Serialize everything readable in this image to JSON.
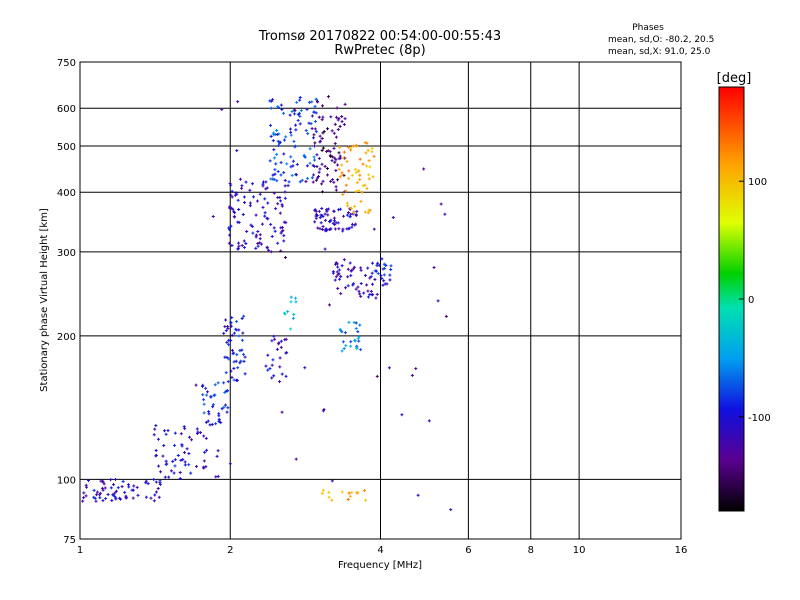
{
  "chart_data": {
    "type": "scatter",
    "title": "Tromsø 20170822 00:54:00-00:55:43",
    "subtitle": "RwPretec (8p)",
    "xlabel": "Frequency [MHz]",
    "ylabel": "Stationary phase Virtual Height [km]",
    "x_scale": "log",
    "y_scale": "log",
    "xlim": [
      1,
      16
    ],
    "ylim": [
      75,
      750
    ],
    "x_ticks": [
      1,
      2,
      4,
      6,
      8,
      10,
      16
    ],
    "x_tick_labels": [
      "1",
      "2",
      "4",
      "6",
      "8",
      "10",
      "16"
    ],
    "y_ticks": [
      75,
      100,
      200,
      300,
      400,
      500,
      600,
      750
    ],
    "y_tick_labels": [
      "75",
      "100",
      "200",
      "300",
      "400",
      "500",
      "600",
      "750"
    ],
    "grid": true,
    "colorbar": {
      "label": "[deg]",
      "range": [
        -180,
        180
      ],
      "ticks": [
        100,
        0,
        -100
      ],
      "tick_labels": [
        "100",
        "0",
        "-100"
      ]
    },
    "stats": {
      "heading": "Phases",
      "line_o": "mean, sd,O: -80.2, 20.5",
      "line_x": "mean, sd,X:  91.0, 25.0"
    },
    "clusters": [
      {
        "f": [
          1.0,
          1.45
        ],
        "h": [
          90,
          100
        ],
        "phase": -110,
        "n": 70
      },
      {
        "f": [
          1.4,
          1.9
        ],
        "h": [
          100,
          130
        ],
        "phase": -105,
        "n": 60
      },
      {
        "f": [
          1.75,
          1.98
        ],
        "h": [
          130,
          160
        ],
        "phase": -85,
        "n": 40
      },
      {
        "f": [
          1.95,
          2.15
        ],
        "h": [
          160,
          220
        ],
        "phase": -95,
        "n": 50
      },
      {
        "f": [
          2.3,
          2.6
        ],
        "h": [
          160,
          200
        ],
        "phase": -110,
        "n": 25
      },
      {
        "f": [
          1.98,
          2.6
        ],
        "h": [
          300,
          430
        ],
        "phase": -110,
        "n": 110
      },
      {
        "f": [
          2.4,
          3.0
        ],
        "h": [
          420,
          640
        ],
        "phase": -80,
        "n": 100
      },
      {
        "f": [
          2.9,
          3.4
        ],
        "h": [
          400,
          620
        ],
        "phase": -140,
        "n": 80
      },
      {
        "f": [
          2.95,
          3.6
        ],
        "h": [
          330,
          370
        ],
        "phase": -110,
        "n": 70
      },
      {
        "f": [
          3.3,
          3.9
        ],
        "h": [
          360,
          520
        ],
        "phase": 110,
        "n": 60
      },
      {
        "f": [
          3.2,
          3.95
        ],
        "h": [
          240,
          290
        ],
        "phase": -115,
        "n": 55
      },
      {
        "f": [
          3.85,
          4.2
        ],
        "h": [
          255,
          290
        ],
        "phase": -95,
        "n": 25
      },
      {
        "f": [
          3.3,
          3.65
        ],
        "h": [
          185,
          215
        ],
        "phase": -60,
        "n": 25
      },
      {
        "f": [
          2.55,
          2.8
        ],
        "h": [
          205,
          245
        ],
        "phase": -30,
        "n": 10
      },
      {
        "f": [
          3.05,
          3.75
        ],
        "h": [
          90,
          95
        ],
        "phase": 115,
        "n": 14
      },
      {
        "f": [
          1.7,
          5.6
        ],
        "h": [
          85,
          640
        ],
        "phase": -130,
        "n": 40
      }
    ]
  }
}
